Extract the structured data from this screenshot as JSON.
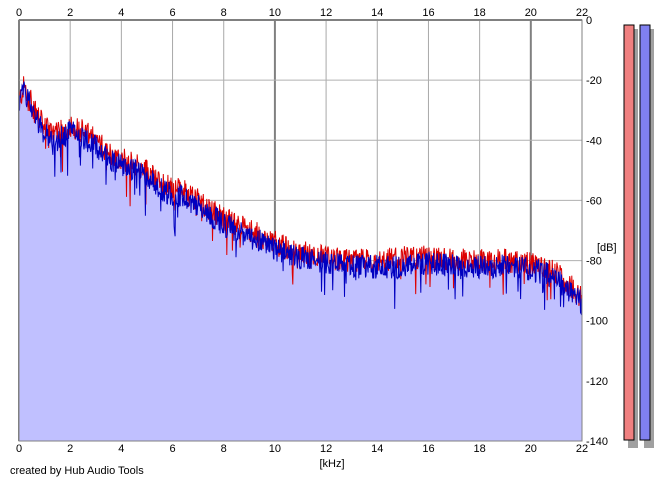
{
  "chart_data": {
    "type": "area",
    "title": "",
    "xlabel": "[kHz]",
    "ylabel": "[dB]",
    "xlim": [
      0,
      22
    ],
    "ylim": [
      -140,
      0
    ],
    "x_ticks": [
      0,
      2,
      4,
      6,
      8,
      10,
      12,
      14,
      16,
      18,
      20,
      22
    ],
    "y_ticks": [
      0,
      -20,
      -40,
      -60,
      -80,
      -100,
      -120,
      -140
    ],
    "x_tick_labels": [
      "0",
      "2",
      "4",
      "6",
      "8",
      "10",
      "12",
      "14",
      "16",
      "18",
      "20",
      "22"
    ],
    "y_tick_labels": [
      "0",
      "-20",
      "-40",
      "-60",
      "-80",
      "-100",
      "-120",
      "-140"
    ],
    "grid": true,
    "x": [
      0.0,
      0.2,
      0.5,
      1.0,
      1.5,
      2.0,
      2.5,
      3.0,
      3.5,
      4.0,
      4.5,
      5.0,
      5.5,
      6.0,
      6.5,
      7.0,
      7.5,
      8.0,
      8.5,
      9.0,
      9.5,
      10.0,
      10.5,
      11.0,
      11.5,
      12.0,
      13.0,
      14.0,
      15.0,
      16.0,
      17.0,
      18.0,
      19.0,
      20.0,
      20.5,
      21.0,
      21.5,
      22.0
    ],
    "series": [
      {
        "color": "#dd0000",
        "values": [
          -27,
          -22,
          -28,
          -36,
          -38,
          -35,
          -37,
          -40,
          -44,
          -46,
          -48,
          -50,
          -54,
          -56,
          -57,
          -60,
          -63,
          -66,
          -68,
          -70,
          -72,
          -74,
          -76,
          -77,
          -78,
          -79,
          -80,
          -80,
          -79,
          -79,
          -80,
          -80,
          -80,
          -81,
          -82,
          -84,
          -88,
          -92
        ]
      },
      {
        "color": "#0000c0",
        "values": [
          -28,
          -23,
          -29,
          -38,
          -40,
          -37,
          -39,
          -42,
          -46,
          -48,
          -50,
          -52,
          -56,
          -58,
          -59,
          -62,
          -65,
          -68,
          -70,
          -72,
          -74,
          -76,
          -78,
          -79,
          -80,
          -81,
          -82,
          -82,
          -82,
          -81,
          -82,
          -82,
          -82,
          -83,
          -84,
          -86,
          -90,
          -94
        ]
      }
    ]
  },
  "level_meters": {
    "left": {
      "color": "#f08080",
      "level": 1.0
    },
    "right": {
      "color": "#8080f0",
      "level": 1.0
    }
  },
  "footer": {
    "credit": "created by Hub Audio Tools"
  }
}
